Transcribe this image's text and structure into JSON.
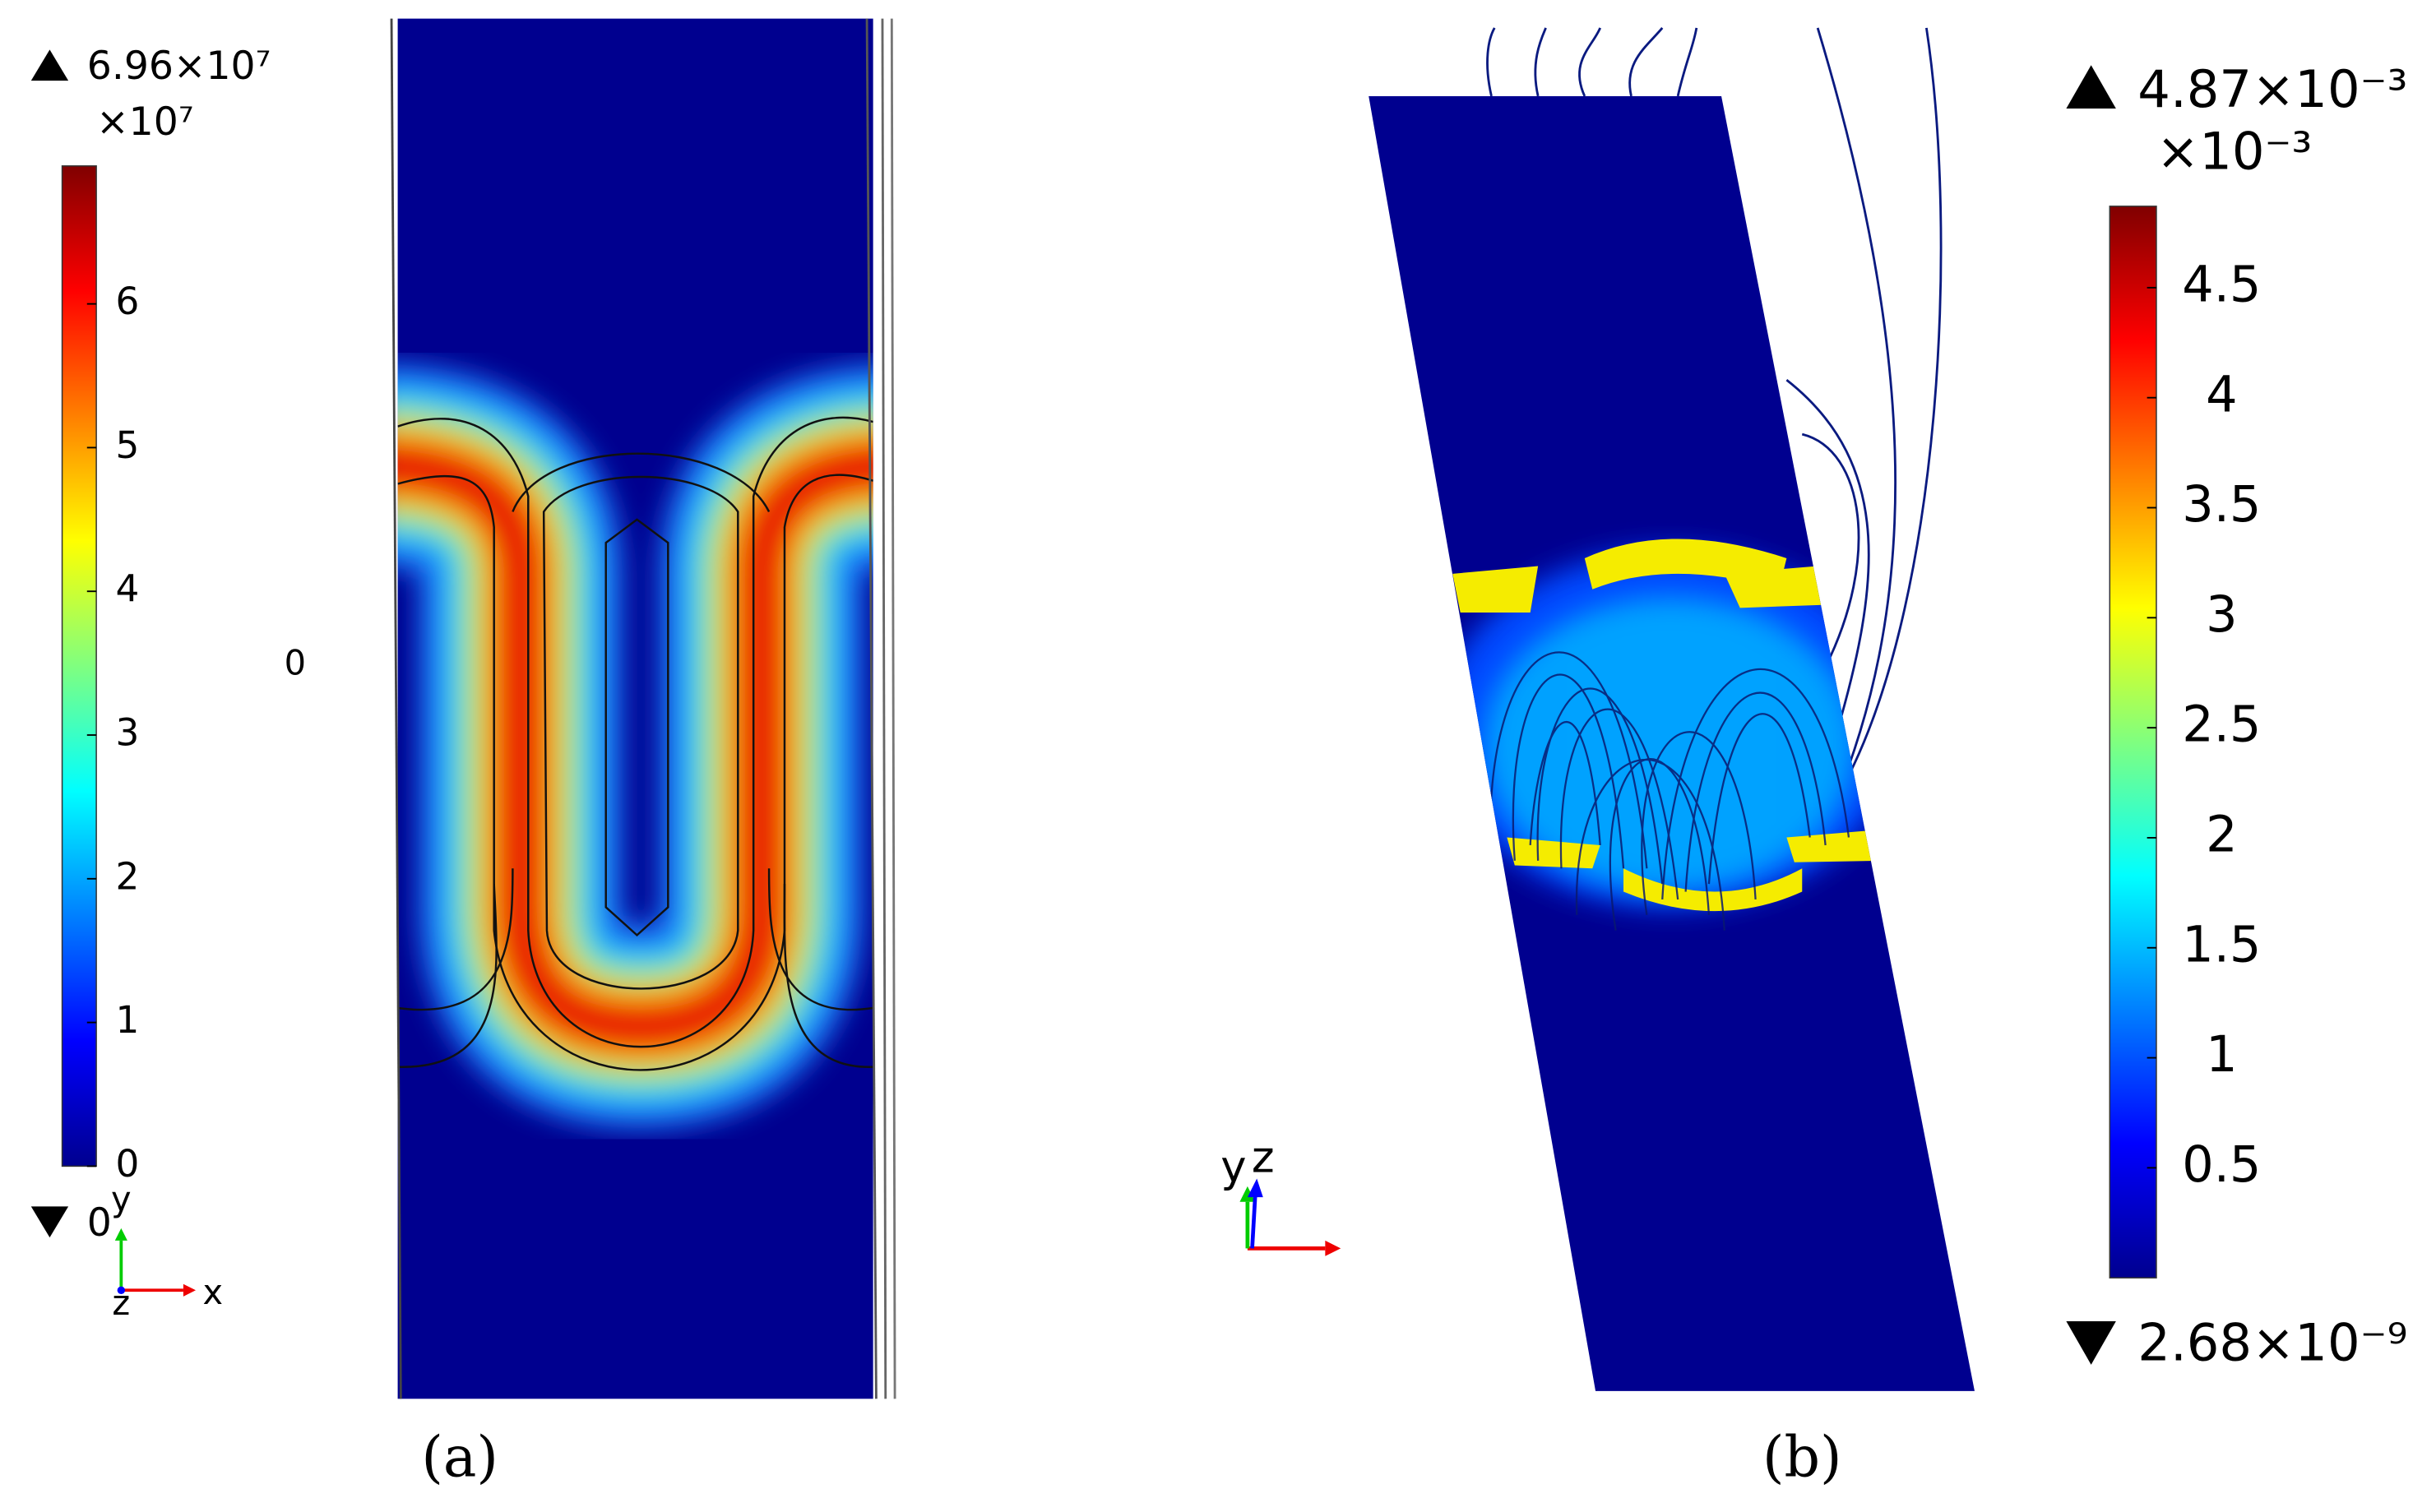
{
  "panels": [
    {
      "label": "(a)",
      "colorbar": {
        "max_label": "6.96×10⁷",
        "multiplier": "×10⁷",
        "min_label": "0",
        "clim": [
          0,
          6.96
        ],
        "ticks": [
          0,
          1,
          2,
          3,
          4,
          5,
          6
        ]
      },
      "side_label": "0",
      "axes": [
        "y",
        "x",
        "z"
      ]
    },
    {
      "label": "(b)",
      "colorbar": {
        "max_label": "4.87×10⁻³",
        "multiplier": "×10⁻³",
        "min_label": "2.68×10⁻⁹",
        "clim": [
          0,
          4.87
        ],
        "ticks": [
          0.5,
          1,
          1.5,
          2,
          2.5,
          3,
          3.5,
          4,
          4.5
        ]
      },
      "axes": [
        "y",
        "z"
      ]
    }
  ]
}
